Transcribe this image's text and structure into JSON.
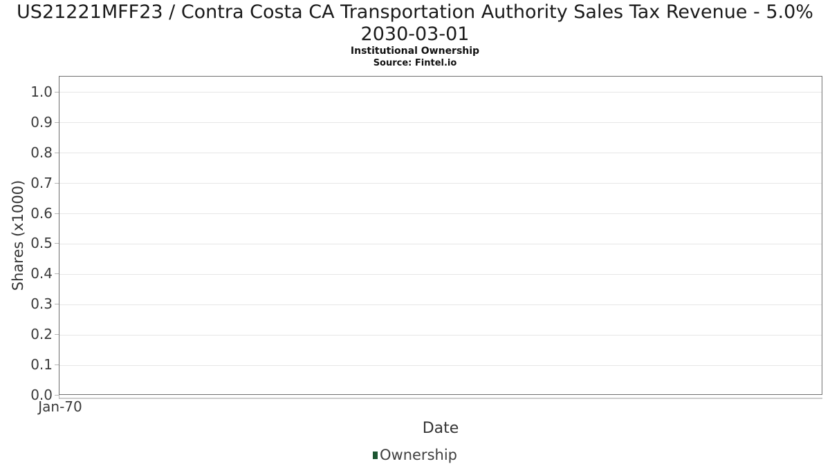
{
  "header": {
    "title": "US21221MFF23 / Contra Costa CA Transportation Authority Sales Tax Revenue - 5.0% 2030-03-01",
    "subtitle": "Institutional Ownership",
    "source": "Source: Fintel.io"
  },
  "chart_data": {
    "type": "line",
    "title": "US21221MFF23 / Contra Costa CA Transportation Authority Sales Tax Revenue - 5.0% 2030-03-01",
    "subtitle": "Institutional Ownership",
    "source": "Source: Fintel.io",
    "xlabel": "Date",
    "ylabel": "Shares (x1000)",
    "x_ticks": [
      "Jan-70"
    ],
    "y_ticks": [
      "0.0",
      "0.1",
      "0.2",
      "0.3",
      "0.4",
      "0.5",
      "0.6",
      "0.7",
      "0.8",
      "0.9",
      "1.0"
    ],
    "ylim": [
      0,
      1.052
    ],
    "xlim_ticks_shown": 1,
    "grid": "horizontal",
    "legend": {
      "position": "bottom-center",
      "entries": [
        {
          "label": "Ownership",
          "color": "#1d5632"
        }
      ]
    },
    "series": [
      {
        "name": "Ownership",
        "x": [],
        "values": []
      }
    ]
  },
  "colors": {
    "background": "#ffffff",
    "plot_border": "#6e6e6e",
    "gridline": "#e6e6e6",
    "axis_line": "#cccccc",
    "tick_mark": "#b5b5b5",
    "title_text": "#1a1a1a",
    "axis_text": "#3a3a3a",
    "legend_green": "#1d5632"
  }
}
